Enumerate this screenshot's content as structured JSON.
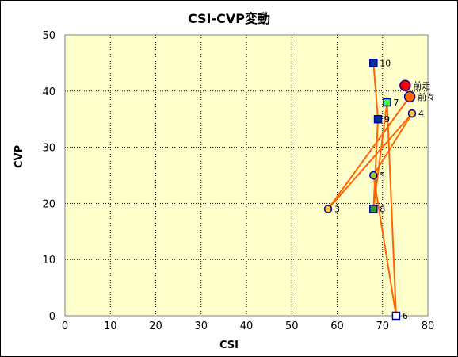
{
  "chart_data": {
    "type": "scatter",
    "title": "CSI-CVP変動",
    "xlabel": "CSI",
    "ylabel": "CVP",
    "xlim": [
      0,
      80
    ],
    "ylim": [
      0,
      50
    ],
    "x_ticks": [
      0,
      10,
      20,
      30,
      40,
      50,
      60,
      70,
      80
    ],
    "y_ticks": [
      0,
      10,
      20,
      30,
      40,
      50
    ],
    "grid": true,
    "plot_background": "#ffffcc",
    "line_color": "#ff6600",
    "path_order": [
      "10",
      "9",
      "8",
      "7",
      "6",
      "5",
      "4",
      "3",
      "前々",
      "前走"
    ],
    "points": [
      {
        "label": "前走",
        "x": 75,
        "y": 41,
        "marker": "circle",
        "fill": "#ff0000",
        "stroke": "#0000aa",
        "large": true
      },
      {
        "label": "前々",
        "x": 76,
        "y": 39,
        "marker": "circle",
        "fill": "#ff6600",
        "stroke": "#0000aa",
        "large": true
      },
      {
        "label": "3",
        "x": 58,
        "y": 19,
        "marker": "circle",
        "fill": "#ffcc33",
        "stroke": "#0000aa"
      },
      {
        "label": "4",
        "x": 76.5,
        "y": 36,
        "marker": "circle",
        "fill": "#ffcc33",
        "stroke": "#0000aa"
      },
      {
        "label": "5",
        "x": 68,
        "y": 25,
        "marker": "circle",
        "fill": "#99cc33",
        "stroke": "#0000aa"
      },
      {
        "label": "6",
        "x": 73,
        "y": 0,
        "marker": "square",
        "fill": "#ffffff",
        "stroke": "#0000aa"
      },
      {
        "label": "7",
        "x": 71,
        "y": 38,
        "marker": "square",
        "fill": "#33ff33",
        "stroke": "#0000aa"
      },
      {
        "label": "8",
        "x": 68,
        "y": 19,
        "marker": "square",
        "fill": "#339933",
        "stroke": "#0000aa"
      },
      {
        "label": "9",
        "x": 69,
        "y": 35,
        "marker": "square",
        "fill": "#003399",
        "stroke": "#0000aa"
      },
      {
        "label": "10",
        "x": 68,
        "y": 45,
        "marker": "square",
        "fill": "#003399",
        "stroke": "#0000aa"
      }
    ]
  }
}
